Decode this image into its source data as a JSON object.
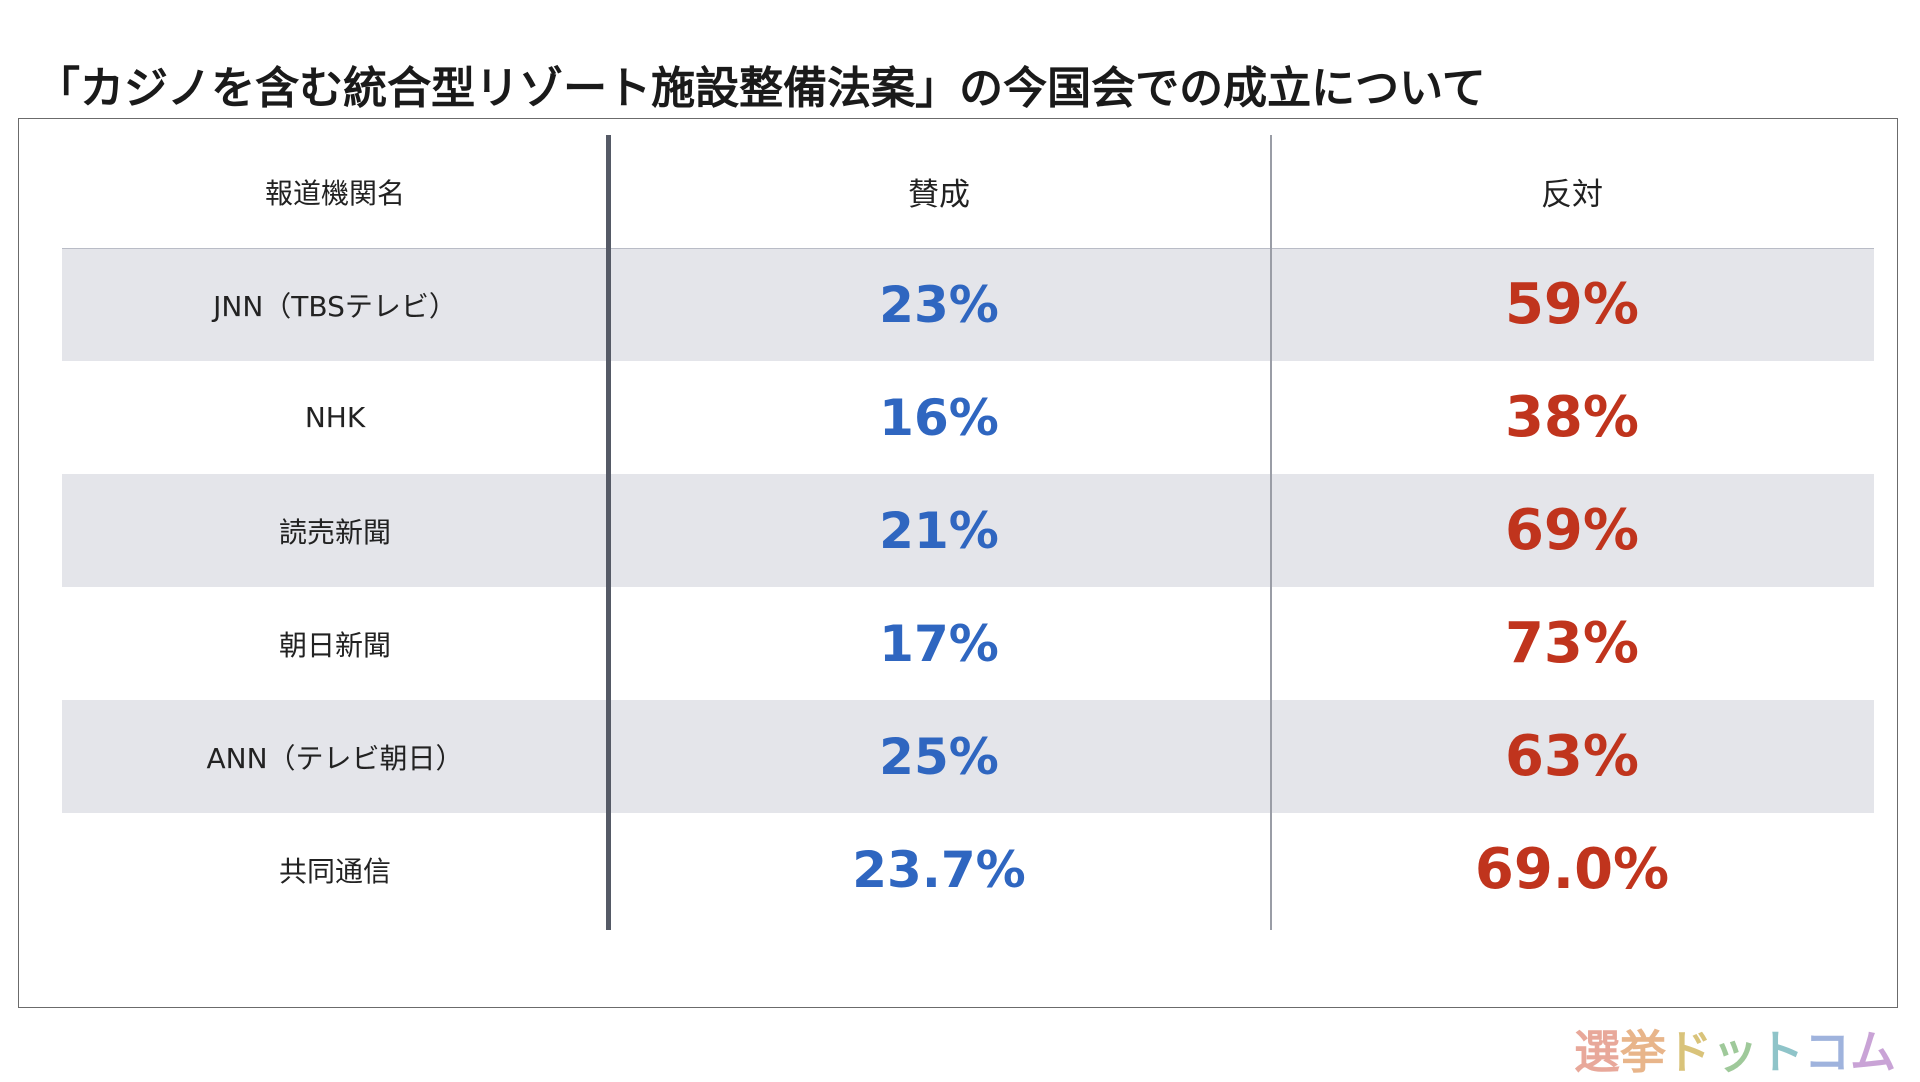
{
  "title": "「カジノを含む統合型リゾート施設整備法案」の今国会での成立について",
  "colors": {
    "yes": "#2f66c0",
    "no": "#c0341d",
    "shade": "#e4e5ea"
  },
  "chart_data": {
    "type": "table",
    "title": "「カジノを含む統合型リゾート施設整備法案」の今国会での成立について",
    "columns": [
      "報道機関名",
      "賛成",
      "反対"
    ],
    "rows": [
      {
        "outlet": "JNN（TBSテレビ）",
        "yes": "23%",
        "no": "59%"
      },
      {
        "outlet": "NHK",
        "yes": "16%",
        "no": "38%"
      },
      {
        "outlet": "読売新聞",
        "yes": "21%",
        "no": "69%"
      },
      {
        "outlet": "朝日新聞",
        "yes": "17%",
        "no": "73%"
      },
      {
        "outlet": "ANN（テレビ朝日）",
        "yes": "25%",
        "no": "63%"
      },
      {
        "outlet": "共同通信",
        "yes": "23.7%",
        "no": "69.0%"
      }
    ]
  },
  "logo": {
    "text": "選挙ドットコム",
    "colors": [
      "#e8a89a",
      "#e8b58a",
      "#d9c37a",
      "#9fc99a",
      "#8fc4c9",
      "#9fb3dd",
      "#c9a3d6"
    ]
  }
}
